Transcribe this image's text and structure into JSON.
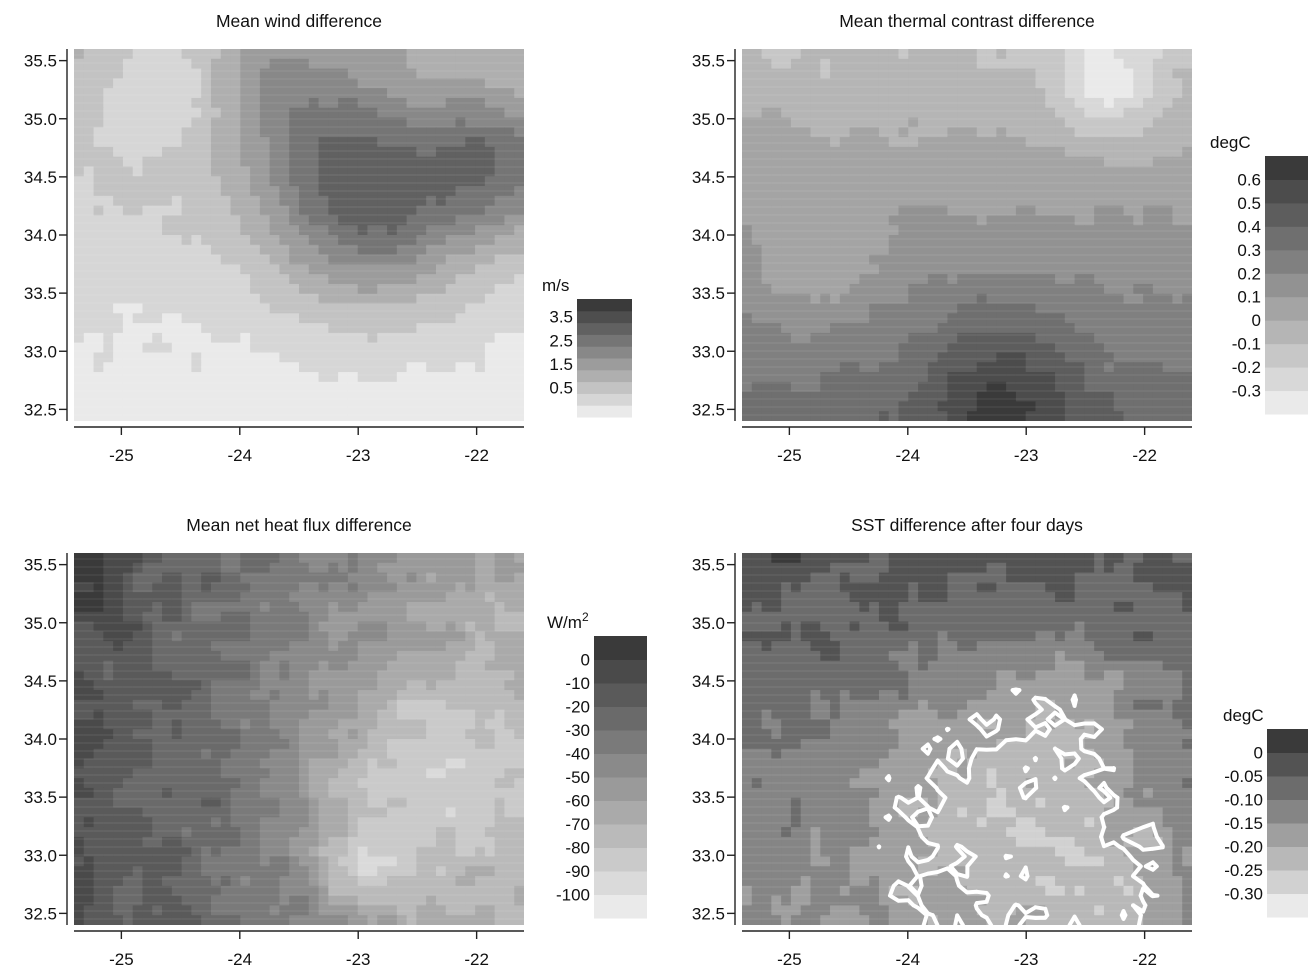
{
  "chart_data": [
    {
      "type": "heatmap",
      "title": "Mean wind difference",
      "x_ticks": [
        -25,
        -24,
        -23,
        -22
      ],
      "x_tick_labels": [
        "-25",
        "-24",
        "-23",
        "-22"
      ],
      "y_ticks": [
        32.5,
        33.0,
        33.5,
        34.0,
        34.5,
        35.0,
        35.5
      ],
      "y_tick_labels": [
        "32.5",
        "33.0",
        "33.5",
        "34.0",
        "34.5",
        "35.0",
        "35.5"
      ],
      "xlim": [
        -25.4,
        -21.6
      ],
      "ylim": [
        32.4,
        35.6
      ],
      "colorbar": {
        "unit": "m/s",
        "levels": 10,
        "labels": [
          "3.5",
          "2.5",
          "1.5",
          "0.5"
        ],
        "label_positions": [
          8.5,
          6.5,
          4.5,
          2.5
        ]
      },
      "field": {
        "min": 0.0,
        "max": 4.5,
        "roughness": 0.05,
        "features": [
          {
            "type": "gradient_y",
            "from": 0.2,
            "to": 1.3
          },
          {
            "type": "blob",
            "x": -22.9,
            "y": 34.3,
            "r": 0.85,
            "amp": 2.6
          },
          {
            "type": "blob",
            "x": -21.8,
            "y": 34.6,
            "r": 0.6,
            "amp": 1.8
          },
          {
            "type": "blob",
            "x": -23.6,
            "y": 35.2,
            "r": 0.7,
            "amp": 1.0
          },
          {
            "type": "blob",
            "x": -24.6,
            "y": 35.3,
            "r": 0.5,
            "amp": -0.8
          }
        ]
      }
    },
    {
      "type": "heatmap",
      "title": "Mean thermal contrast difference",
      "x_ticks": [
        -25,
        -24,
        -23,
        -22
      ],
      "x_tick_labels": [
        "-25",
        "-24",
        "-23",
        "-22"
      ],
      "y_ticks": [
        32.5,
        33.0,
        33.5,
        34.0,
        34.5,
        35.0,
        35.5
      ],
      "y_tick_labels": [
        "32.5",
        "33.0",
        "33.5",
        "34.0",
        "34.5",
        "35.0",
        "35.5"
      ],
      "xlim": [
        -25.4,
        -21.6
      ],
      "ylim": [
        32.4,
        35.6
      ],
      "colorbar": {
        "unit": "degC",
        "levels": 11,
        "labels": [
          "0.6",
          "0.5",
          "0.4",
          "0.3",
          "0.2",
          "0.1",
          "0",
          "-0.1",
          "-0.2",
          "-0.3"
        ],
        "label_positions": [
          10,
          9,
          8,
          7,
          6,
          5,
          4,
          3,
          2,
          1
        ]
      },
      "field": {
        "min": -0.4,
        "max": 0.7,
        "roughness": 0.05,
        "features": [
          {
            "type": "gradient_y",
            "from": 0.35,
            "to": -0.1
          },
          {
            "type": "blob",
            "x": -23.2,
            "y": 32.6,
            "r": 0.7,
            "amp": 0.3
          },
          {
            "type": "blob",
            "x": -22.3,
            "y": 35.3,
            "r": 0.45,
            "amp": -0.3
          },
          {
            "type": "blob",
            "x": -24.8,
            "y": 33.7,
            "r": 0.5,
            "amp": -0.15
          }
        ]
      }
    },
    {
      "type": "heatmap",
      "title": "Mean net heat flux difference",
      "x_ticks": [
        -25,
        -24,
        -23,
        -22
      ],
      "x_tick_labels": [
        "-25",
        "-24",
        "-23",
        "-22"
      ],
      "y_ticks": [
        32.5,
        33.0,
        33.5,
        34.0,
        34.5,
        35.0,
        35.5
      ],
      "y_tick_labels": [
        "32.5",
        "33.0",
        "33.5",
        "34.0",
        "34.5",
        "35.0",
        "35.5"
      ],
      "xlim": [
        -25.4,
        -21.6
      ],
      "ylim": [
        32.4,
        35.6
      ],
      "colorbar": {
        "unit": "W/m",
        "unit_superscript": "2",
        "levels": 12,
        "labels": [
          "0",
          "-10",
          "-20",
          "-30",
          "-40",
          "-50",
          "-60",
          "-70",
          "-80",
          "-90",
          "-100"
        ],
        "label_positions": [
          11,
          10,
          9,
          8,
          7,
          6,
          5,
          4,
          3,
          2,
          1
        ]
      },
      "field": {
        "min": -110,
        "max": 10,
        "roughness": 0.14,
        "features": [
          {
            "type": "gradient_x",
            "from": -10,
            "to": -65
          },
          {
            "type": "blob",
            "x": -22.5,
            "y": 33.6,
            "r": 1.0,
            "amp": -35
          },
          {
            "type": "blob",
            "x": -23.0,
            "y": 32.9,
            "r": 0.4,
            "amp": -25
          },
          {
            "type": "blob",
            "x": -25.3,
            "y": 35.5,
            "r": 0.5,
            "amp": 15
          }
        ]
      }
    },
    {
      "type": "heatmap",
      "title": "SST difference after four days",
      "x_ticks": [
        -25,
        -24,
        -23,
        -22
      ],
      "x_tick_labels": [
        "-25",
        "-24",
        "-23",
        "-22"
      ],
      "y_ticks": [
        32.5,
        33.0,
        33.5,
        34.0,
        34.5,
        35.0,
        35.5
      ],
      "y_tick_labels": [
        "32.5",
        "33.0",
        "33.5",
        "34.0",
        "34.5",
        "35.0",
        "35.5"
      ],
      "xlim": [
        -25.4,
        -21.6
      ],
      "ylim": [
        32.4,
        35.6
      ],
      "colorbar": {
        "unit": "degC",
        "levels": 8,
        "labels": [
          "0",
          "-0.05",
          "-0.10",
          "-0.15",
          "-0.20",
          "-0.25",
          "-0.30"
        ],
        "label_positions": [
          7,
          6,
          5,
          4,
          3,
          2,
          1
        ]
      },
      "contour_line": {
        "level": -0.2,
        "color": "#ffffff"
      },
      "field": {
        "min": -0.35,
        "max": 0.05,
        "roughness": 0.16,
        "features": [
          {
            "type": "gradient_y",
            "from": -0.14,
            "to": -0.03
          },
          {
            "type": "blob",
            "x": -23.3,
            "y": 33.5,
            "r": 1.1,
            "amp": -0.13
          },
          {
            "type": "blob",
            "x": -22.6,
            "y": 34.4,
            "r": 0.7,
            "amp": -0.06
          },
          {
            "type": "blob",
            "x": -22.3,
            "y": 32.8,
            "r": 0.6,
            "amp": -0.08
          }
        ]
      }
    }
  ]
}
